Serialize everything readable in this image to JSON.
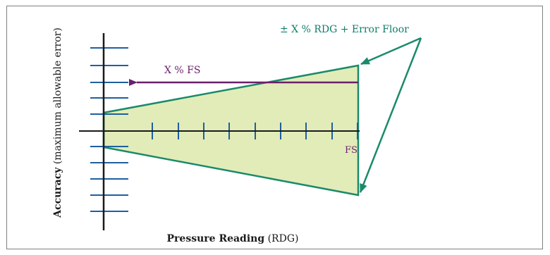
{
  "diagram": {
    "y_axis_label": {
      "bold": "Accuracy",
      "normal": " (maximum allowable error)"
    },
    "x_axis_label": {
      "bold": "Pressure Reading",
      "normal": " (RDG)"
    },
    "annotations": {
      "error_floor": "± X % RDG + Error Floor",
      "fs_percent": "X % FS",
      "fs": "FS"
    },
    "colors": {
      "axis": "#1a1a1a",
      "ticks": "#1f5fa0",
      "envelope_stroke": "#1a8a6a",
      "envelope_fill": "#e2ecb8",
      "fs_arrow": "#6b1f6b",
      "frame": "#7f7f7f"
    }
  }
}
